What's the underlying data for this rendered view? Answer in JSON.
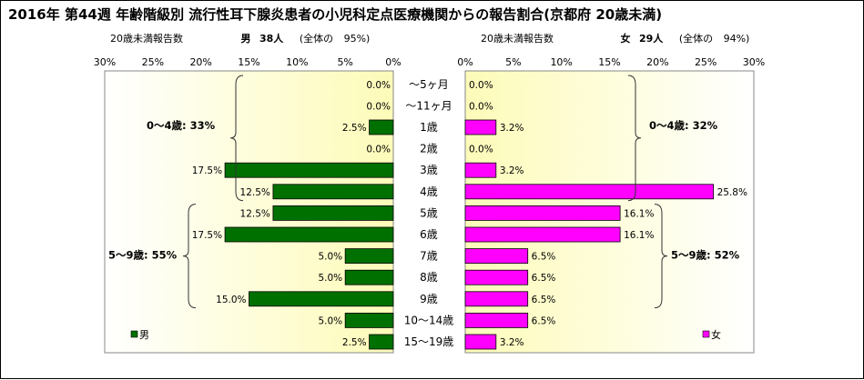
{
  "title": "2016年 第44週 年齢階級別 流行性耳下腺炎患者の小児科定点医療機関からの報告割合(京都府 20歳未満)",
  "left_header": {
    "label": "20歳未満報告数",
    "sex": "男",
    "count": "38人",
    "share_prefix": "(全体の",
    "share": "95%)"
  },
  "right_header": {
    "label": "20歳未満報告数",
    "sex": "女",
    "count": "29人",
    "share_prefix": "(全体の",
    "share": "94%)"
  },
  "chart_data": {
    "type": "bar",
    "orientation": "horizontal-butterfly",
    "categories": [
      "～5ヶ月",
      "～11ヶ月",
      "1歳",
      "2歳",
      "3歳",
      "4歳",
      "5歳",
      "6歳",
      "7歳",
      "8歳",
      "9歳",
      "10～14歳",
      "15～19歳"
    ],
    "series": [
      {
        "name": "男",
        "color": "#007000",
        "values": [
          0.0,
          0.0,
          2.5,
          0.0,
          17.5,
          12.5,
          12.5,
          17.5,
          5.0,
          5.0,
          15.0,
          5.0,
          2.5
        ],
        "labels": [
          "0.0%",
          "0.0%",
          "2.5%",
          "0.0%",
          "17.5%",
          "12.5%",
          "12.5%",
          "17.5%",
          "5.0%",
          "5.0%",
          "15.0%",
          "5.0%",
          "2.5%"
        ]
      },
      {
        "name": "女",
        "color": "#FF00FF",
        "values": [
          0.0,
          0.0,
          3.2,
          0.0,
          3.2,
          25.8,
          16.1,
          16.1,
          6.5,
          6.5,
          6.5,
          6.5,
          3.2
        ],
        "labels": [
          "0.0%",
          "0.0%",
          "3.2%",
          "0.0%",
          "3.2%",
          "25.8%",
          "16.1%",
          "16.1%",
          "6.5%",
          "6.5%",
          "6.5%",
          "6.5%",
          "3.2%"
        ]
      }
    ],
    "xlim": [
      0,
      30
    ],
    "left_ticks": [
      "30%",
      "25%",
      "20%",
      "15%",
      "10%",
      "5%",
      "0%"
    ],
    "right_ticks": [
      "0%",
      "5%",
      "10%",
      "15%",
      "20%",
      "25%",
      "30%"
    ],
    "grid": false,
    "legend_placement": "bottom-left / bottom-right",
    "annotations": {
      "male_0_4": "0～4歳: 33%",
      "male_5_9": "5～9歳: 55%",
      "female_0_4": "0～4歳: 32%",
      "female_5_9": "5～9歳: 52%"
    },
    "legend": {
      "male": "男",
      "female": "女"
    }
  }
}
